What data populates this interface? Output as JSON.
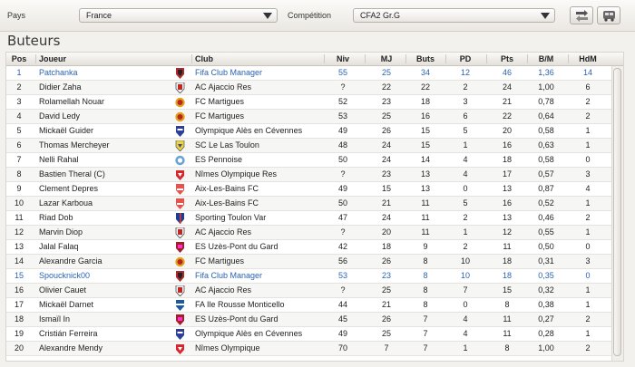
{
  "filters": {
    "country_label": "Pays",
    "country_value": "France",
    "competition_label": "Compétition",
    "competition_value": "CFA2 Gr.G"
  },
  "toolbar": {
    "button1_icon": "transfer-icon",
    "button2_icon": "bus-icon"
  },
  "section_title": "Buteurs",
  "columns": {
    "pos": "Pos",
    "player": "Joueur",
    "club": "Club",
    "niv": "Niv",
    "mj": "MJ",
    "buts": "Buts",
    "pd": "PD",
    "pts": "Pts",
    "bm": "B/M",
    "hdm": "HdM"
  },
  "colors": {
    "highlight_text": "#2a63b4"
  },
  "rows": [
    {
      "pos": "1",
      "player": "Patchanka",
      "club": "Fifa Club Manager",
      "niv": "55",
      "mj": "25",
      "buts": "34",
      "pd": "12",
      "pts": "46",
      "bm": "1,36",
      "hdm": "14",
      "highlight": true,
      "crest": "fcm"
    },
    {
      "pos": "2",
      "player": "Didier Zaha",
      "club": "AC Ajaccio Res",
      "niv": "?",
      "mj": "22",
      "buts": "22",
      "pd": "2",
      "pts": "24",
      "bm": "1,00",
      "hdm": "6",
      "crest": "aca"
    },
    {
      "pos": "3",
      "player": "Rolamellah Nouar",
      "club": "FC Martigues",
      "niv": "52",
      "mj": "23",
      "buts": "18",
      "pd": "3",
      "pts": "21",
      "bm": "0,78",
      "hdm": "2",
      "crest": "fcm2"
    },
    {
      "pos": "4",
      "player": "David Ledy",
      "club": "FC Martigues",
      "niv": "53",
      "mj": "25",
      "buts": "16",
      "pd": "6",
      "pts": "22",
      "bm": "0,64",
      "hdm": "2",
      "crest": "fcm2"
    },
    {
      "pos": "5",
      "player": "Mickaël Guider",
      "club": "Olympique Alès en Cévennes",
      "niv": "49",
      "mj": "26",
      "buts": "15",
      "pd": "5",
      "pts": "20",
      "bm": "0,58",
      "hdm": "1",
      "crest": "oac"
    },
    {
      "pos": "6",
      "player": "Thomas Mercheyer",
      "club": "SC Le Las Toulon",
      "niv": "48",
      "mj": "24",
      "buts": "15",
      "pd": "1",
      "pts": "16",
      "bm": "0,63",
      "hdm": "1",
      "crest": "scl"
    },
    {
      "pos": "7",
      "player": "Nelli Rahal",
      "club": "ES Pennoise",
      "niv": "50",
      "mj": "24",
      "buts": "14",
      "pd": "4",
      "pts": "18",
      "bm": "0,58",
      "hdm": "0",
      "crest": "esp"
    },
    {
      "pos": "8",
      "player": "Bastien Theral (C)",
      "club": "Nîmes Olympique Res",
      "niv": "?",
      "mj": "23",
      "buts": "13",
      "pd": "4",
      "pts": "17",
      "bm": "0,57",
      "hdm": "3",
      "crest": "nim"
    },
    {
      "pos": "9",
      "player": "Clement Depres",
      "club": "Aix-Les-Bains FC",
      "niv": "49",
      "mj": "15",
      "buts": "13",
      "pd": "0",
      "pts": "13",
      "bm": "0,87",
      "hdm": "4",
      "crest": "alb"
    },
    {
      "pos": "10",
      "player": "Lazar Karboua",
      "club": "Aix-Les-Bains FC",
      "niv": "50",
      "mj": "21",
      "buts": "11",
      "pd": "5",
      "pts": "16",
      "bm": "0,52",
      "hdm": "1",
      "crest": "alb"
    },
    {
      "pos": "11",
      "player": "Riad Dob",
      "club": "Sporting Toulon Var",
      "niv": "47",
      "mj": "24",
      "buts": "11",
      "pd": "2",
      "pts": "13",
      "bm": "0,46",
      "hdm": "2",
      "crest": "stv"
    },
    {
      "pos": "12",
      "player": "Marvin Diop",
      "club": "AC Ajaccio Res",
      "niv": "?",
      "mj": "20",
      "buts": "11",
      "pd": "1",
      "pts": "12",
      "bm": "0,55",
      "hdm": "1",
      "crest": "aca"
    },
    {
      "pos": "13",
      "player": "Jalal Falaq",
      "club": "ES Uzès-Pont du Gard",
      "niv": "42",
      "mj": "18",
      "buts": "9",
      "pd": "2",
      "pts": "11",
      "bm": "0,50",
      "hdm": "0",
      "crest": "esu"
    },
    {
      "pos": "14",
      "player": "Alexandre Garcia",
      "club": "FC Martigues",
      "niv": "56",
      "mj": "26",
      "buts": "8",
      "pd": "10",
      "pts": "18",
      "bm": "0,31",
      "hdm": "3",
      "crest": "fcm2"
    },
    {
      "pos": "15",
      "player": "Spoucknick00",
      "club": "Fifa Club Manager",
      "niv": "53",
      "mj": "23",
      "buts": "8",
      "pd": "10",
      "pts": "18",
      "bm": "0,35",
      "hdm": "0",
      "highlight": true,
      "crest": "fcm"
    },
    {
      "pos": "16",
      "player": "Olivier Cauet",
      "club": "AC Ajaccio Res",
      "niv": "?",
      "mj": "25",
      "buts": "8",
      "pd": "7",
      "pts": "15",
      "bm": "0,32",
      "hdm": "1",
      "crest": "aca"
    },
    {
      "pos": "17",
      "player": "Mickaël Darnet",
      "club": "FA Ile Rousse Monticello",
      "niv": "44",
      "mj": "21",
      "buts": "8",
      "pd": "0",
      "pts": "8",
      "bm": "0,38",
      "hdm": "1",
      "crest": "fai"
    },
    {
      "pos": "18",
      "player": "Ismaïl In",
      "club": "ES Uzès-Pont du Gard",
      "niv": "45",
      "mj": "26",
      "buts": "7",
      "pd": "4",
      "pts": "11",
      "bm": "0,27",
      "hdm": "2",
      "crest": "esu"
    },
    {
      "pos": "19",
      "player": "Cristián Ferreira",
      "club": "Olympique Alès en Cévennes",
      "niv": "49",
      "mj": "25",
      "buts": "7",
      "pd": "4",
      "pts": "11",
      "bm": "0,28",
      "hdm": "1",
      "crest": "oac"
    },
    {
      "pos": "20",
      "player": "Alexandre Mendy",
      "club": "Nîmes Olympique",
      "niv": "70",
      "mj": "7",
      "buts": "7",
      "pd": "1",
      "pts": "8",
      "bm": "1,00",
      "hdm": "2",
      "crest": "nim"
    }
  ]
}
